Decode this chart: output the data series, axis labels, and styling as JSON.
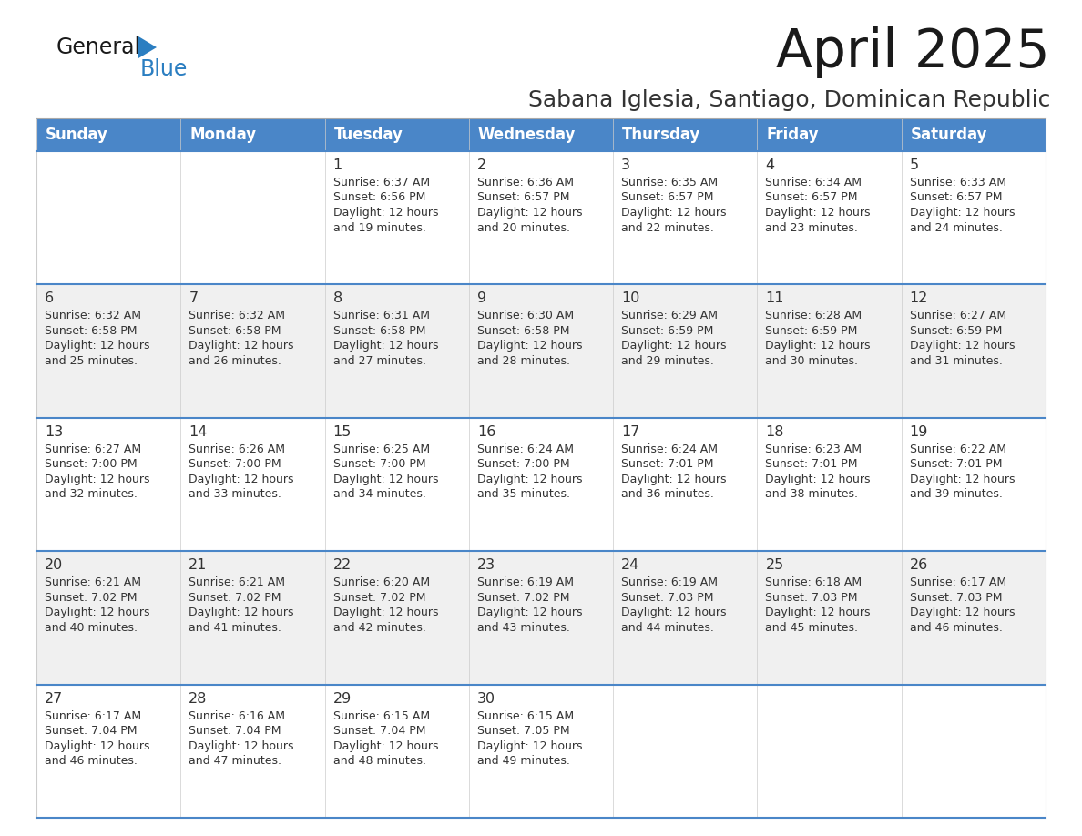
{
  "title": "April 2025",
  "subtitle": "Sabana Iglesia, Santiago, Dominican Republic",
  "days_of_week": [
    "Sunday",
    "Monday",
    "Tuesday",
    "Wednesday",
    "Thursday",
    "Friday",
    "Saturday"
  ],
  "header_bg": "#4A86C8",
  "header_text": "#FFFFFF",
  "row_bg_even": "#FFFFFF",
  "row_bg_odd": "#F0F0F0",
  "cell_text": "#333333",
  "title_color": "#1a1a1a",
  "subtitle_color": "#333333",
  "general_text_color": "#1a1a1a",
  "blue_color": "#2B7EC1",
  "row_divider_color": "#4A86C8",
  "calendar_data": [
    [
      null,
      null,
      {
        "day": 1,
        "sunrise": "6:37 AM",
        "sunset": "6:56 PM",
        "daylight": "12 hours and 19 minutes."
      },
      {
        "day": 2,
        "sunrise": "6:36 AM",
        "sunset": "6:57 PM",
        "daylight": "12 hours and 20 minutes."
      },
      {
        "day": 3,
        "sunrise": "6:35 AM",
        "sunset": "6:57 PM",
        "daylight": "12 hours and 22 minutes."
      },
      {
        "day": 4,
        "sunrise": "6:34 AM",
        "sunset": "6:57 PM",
        "daylight": "12 hours and 23 minutes."
      },
      {
        "day": 5,
        "sunrise": "6:33 AM",
        "sunset": "6:57 PM",
        "daylight": "12 hours and 24 minutes."
      }
    ],
    [
      {
        "day": 6,
        "sunrise": "6:32 AM",
        "sunset": "6:58 PM",
        "daylight": "12 hours and 25 minutes."
      },
      {
        "day": 7,
        "sunrise": "6:32 AM",
        "sunset": "6:58 PM",
        "daylight": "12 hours and 26 minutes."
      },
      {
        "day": 8,
        "sunrise": "6:31 AM",
        "sunset": "6:58 PM",
        "daylight": "12 hours and 27 minutes."
      },
      {
        "day": 9,
        "sunrise": "6:30 AM",
        "sunset": "6:58 PM",
        "daylight": "12 hours and 28 minutes."
      },
      {
        "day": 10,
        "sunrise": "6:29 AM",
        "sunset": "6:59 PM",
        "daylight": "12 hours and 29 minutes."
      },
      {
        "day": 11,
        "sunrise": "6:28 AM",
        "sunset": "6:59 PM",
        "daylight": "12 hours and 30 minutes."
      },
      {
        "day": 12,
        "sunrise": "6:27 AM",
        "sunset": "6:59 PM",
        "daylight": "12 hours and 31 minutes."
      }
    ],
    [
      {
        "day": 13,
        "sunrise": "6:27 AM",
        "sunset": "7:00 PM",
        "daylight": "12 hours and 32 minutes."
      },
      {
        "day": 14,
        "sunrise": "6:26 AM",
        "sunset": "7:00 PM",
        "daylight": "12 hours and 33 minutes."
      },
      {
        "day": 15,
        "sunrise": "6:25 AM",
        "sunset": "7:00 PM",
        "daylight": "12 hours and 34 minutes."
      },
      {
        "day": 16,
        "sunrise": "6:24 AM",
        "sunset": "7:00 PM",
        "daylight": "12 hours and 35 minutes."
      },
      {
        "day": 17,
        "sunrise": "6:24 AM",
        "sunset": "7:01 PM",
        "daylight": "12 hours and 36 minutes."
      },
      {
        "day": 18,
        "sunrise": "6:23 AM",
        "sunset": "7:01 PM",
        "daylight": "12 hours and 38 minutes."
      },
      {
        "day": 19,
        "sunrise": "6:22 AM",
        "sunset": "7:01 PM",
        "daylight": "12 hours and 39 minutes."
      }
    ],
    [
      {
        "day": 20,
        "sunrise": "6:21 AM",
        "sunset": "7:02 PM",
        "daylight": "12 hours and 40 minutes."
      },
      {
        "day": 21,
        "sunrise": "6:21 AM",
        "sunset": "7:02 PM",
        "daylight": "12 hours and 41 minutes."
      },
      {
        "day": 22,
        "sunrise": "6:20 AM",
        "sunset": "7:02 PM",
        "daylight": "12 hours and 42 minutes."
      },
      {
        "day": 23,
        "sunrise": "6:19 AM",
        "sunset": "7:02 PM",
        "daylight": "12 hours and 43 minutes."
      },
      {
        "day": 24,
        "sunrise": "6:19 AM",
        "sunset": "7:03 PM",
        "daylight": "12 hours and 44 minutes."
      },
      {
        "day": 25,
        "sunrise": "6:18 AM",
        "sunset": "7:03 PM",
        "daylight": "12 hours and 45 minutes."
      },
      {
        "day": 26,
        "sunrise": "6:17 AM",
        "sunset": "7:03 PM",
        "daylight": "12 hours and 46 minutes."
      }
    ],
    [
      {
        "day": 27,
        "sunrise": "6:17 AM",
        "sunset": "7:04 PM",
        "daylight": "12 hours and 46 minutes."
      },
      {
        "day": 28,
        "sunrise": "6:16 AM",
        "sunset": "7:04 PM",
        "daylight": "12 hours and 47 minutes."
      },
      {
        "day": 29,
        "sunrise": "6:15 AM",
        "sunset": "7:04 PM",
        "daylight": "12 hours and 48 minutes."
      },
      {
        "day": 30,
        "sunrise": "6:15 AM",
        "sunset": "7:05 PM",
        "daylight": "12 hours and 49 minutes."
      },
      null,
      null,
      null
    ]
  ]
}
